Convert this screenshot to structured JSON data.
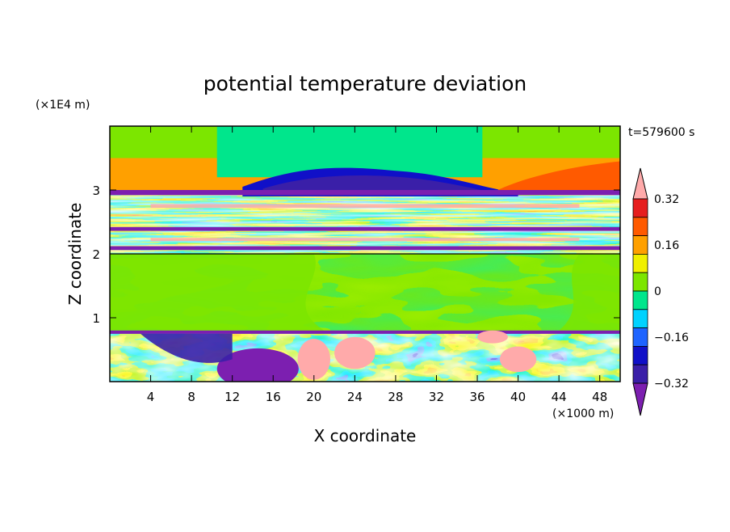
{
  "chart_data": {
    "type": "heatmap",
    "title": "potential temperature deviation",
    "xlabel": "X coordinate",
    "ylabel": "Z coordinate",
    "x_unit": "(×1000 m)",
    "y_unit": "(×1E4 m)",
    "time_label": "t=579600 s",
    "xlim": [
      0,
      50
    ],
    "ylim": [
      0,
      4
    ],
    "x_ticks": [
      "4",
      "8",
      "12",
      "16",
      "20",
      "24",
      "28",
      "32",
      "36",
      "40",
      "44",
      "48"
    ],
    "y_ticks": [
      "1",
      "2",
      "3"
    ],
    "colorbar": {
      "tick_labels": [
        "0.32",
        "0.16",
        "0",
        "−0.16",
        "−0.32"
      ],
      "tick_values": [
        0.32,
        0.16,
        0,
        -0.16,
        -0.32
      ],
      "levels": [
        -0.4,
        -0.32,
        -0.24,
        -0.16,
        -0.08,
        0,
        0.08,
        0.16,
        0.24,
        0.32,
        0.4
      ],
      "colors": [
        "#7c1fb0",
        "#3a1fa8",
        "#1010c8",
        "#1e64ff",
        "#00d2ff",
        "#00e68c",
        "#7ce600",
        "#f0f000",
        "#ffa000",
        "#ff5a00",
        "#e61e1e",
        "#ffaaaa"
      ]
    },
    "bands": [
      {
        "z": [
          0.0,
          0.75
        ],
        "pattern": "turbulent mixed layer, −0.4 to +0.4"
      },
      {
        "z": [
          0.75,
          0.8
        ],
        "value": -0.36
      },
      {
        "z": [
          0.8,
          2.0
        ],
        "value": 0.02
      },
      {
        "z": [
          2.0,
          3.0
        ],
        "pattern": "alternating layers, −0.4 to +0.4"
      },
      {
        "z": [
          3.0,
          3.5
        ],
        "value": 0.2
      },
      {
        "z": [
          3.5,
          4.0
        ],
        "value": 0.04
      }
    ]
  }
}
